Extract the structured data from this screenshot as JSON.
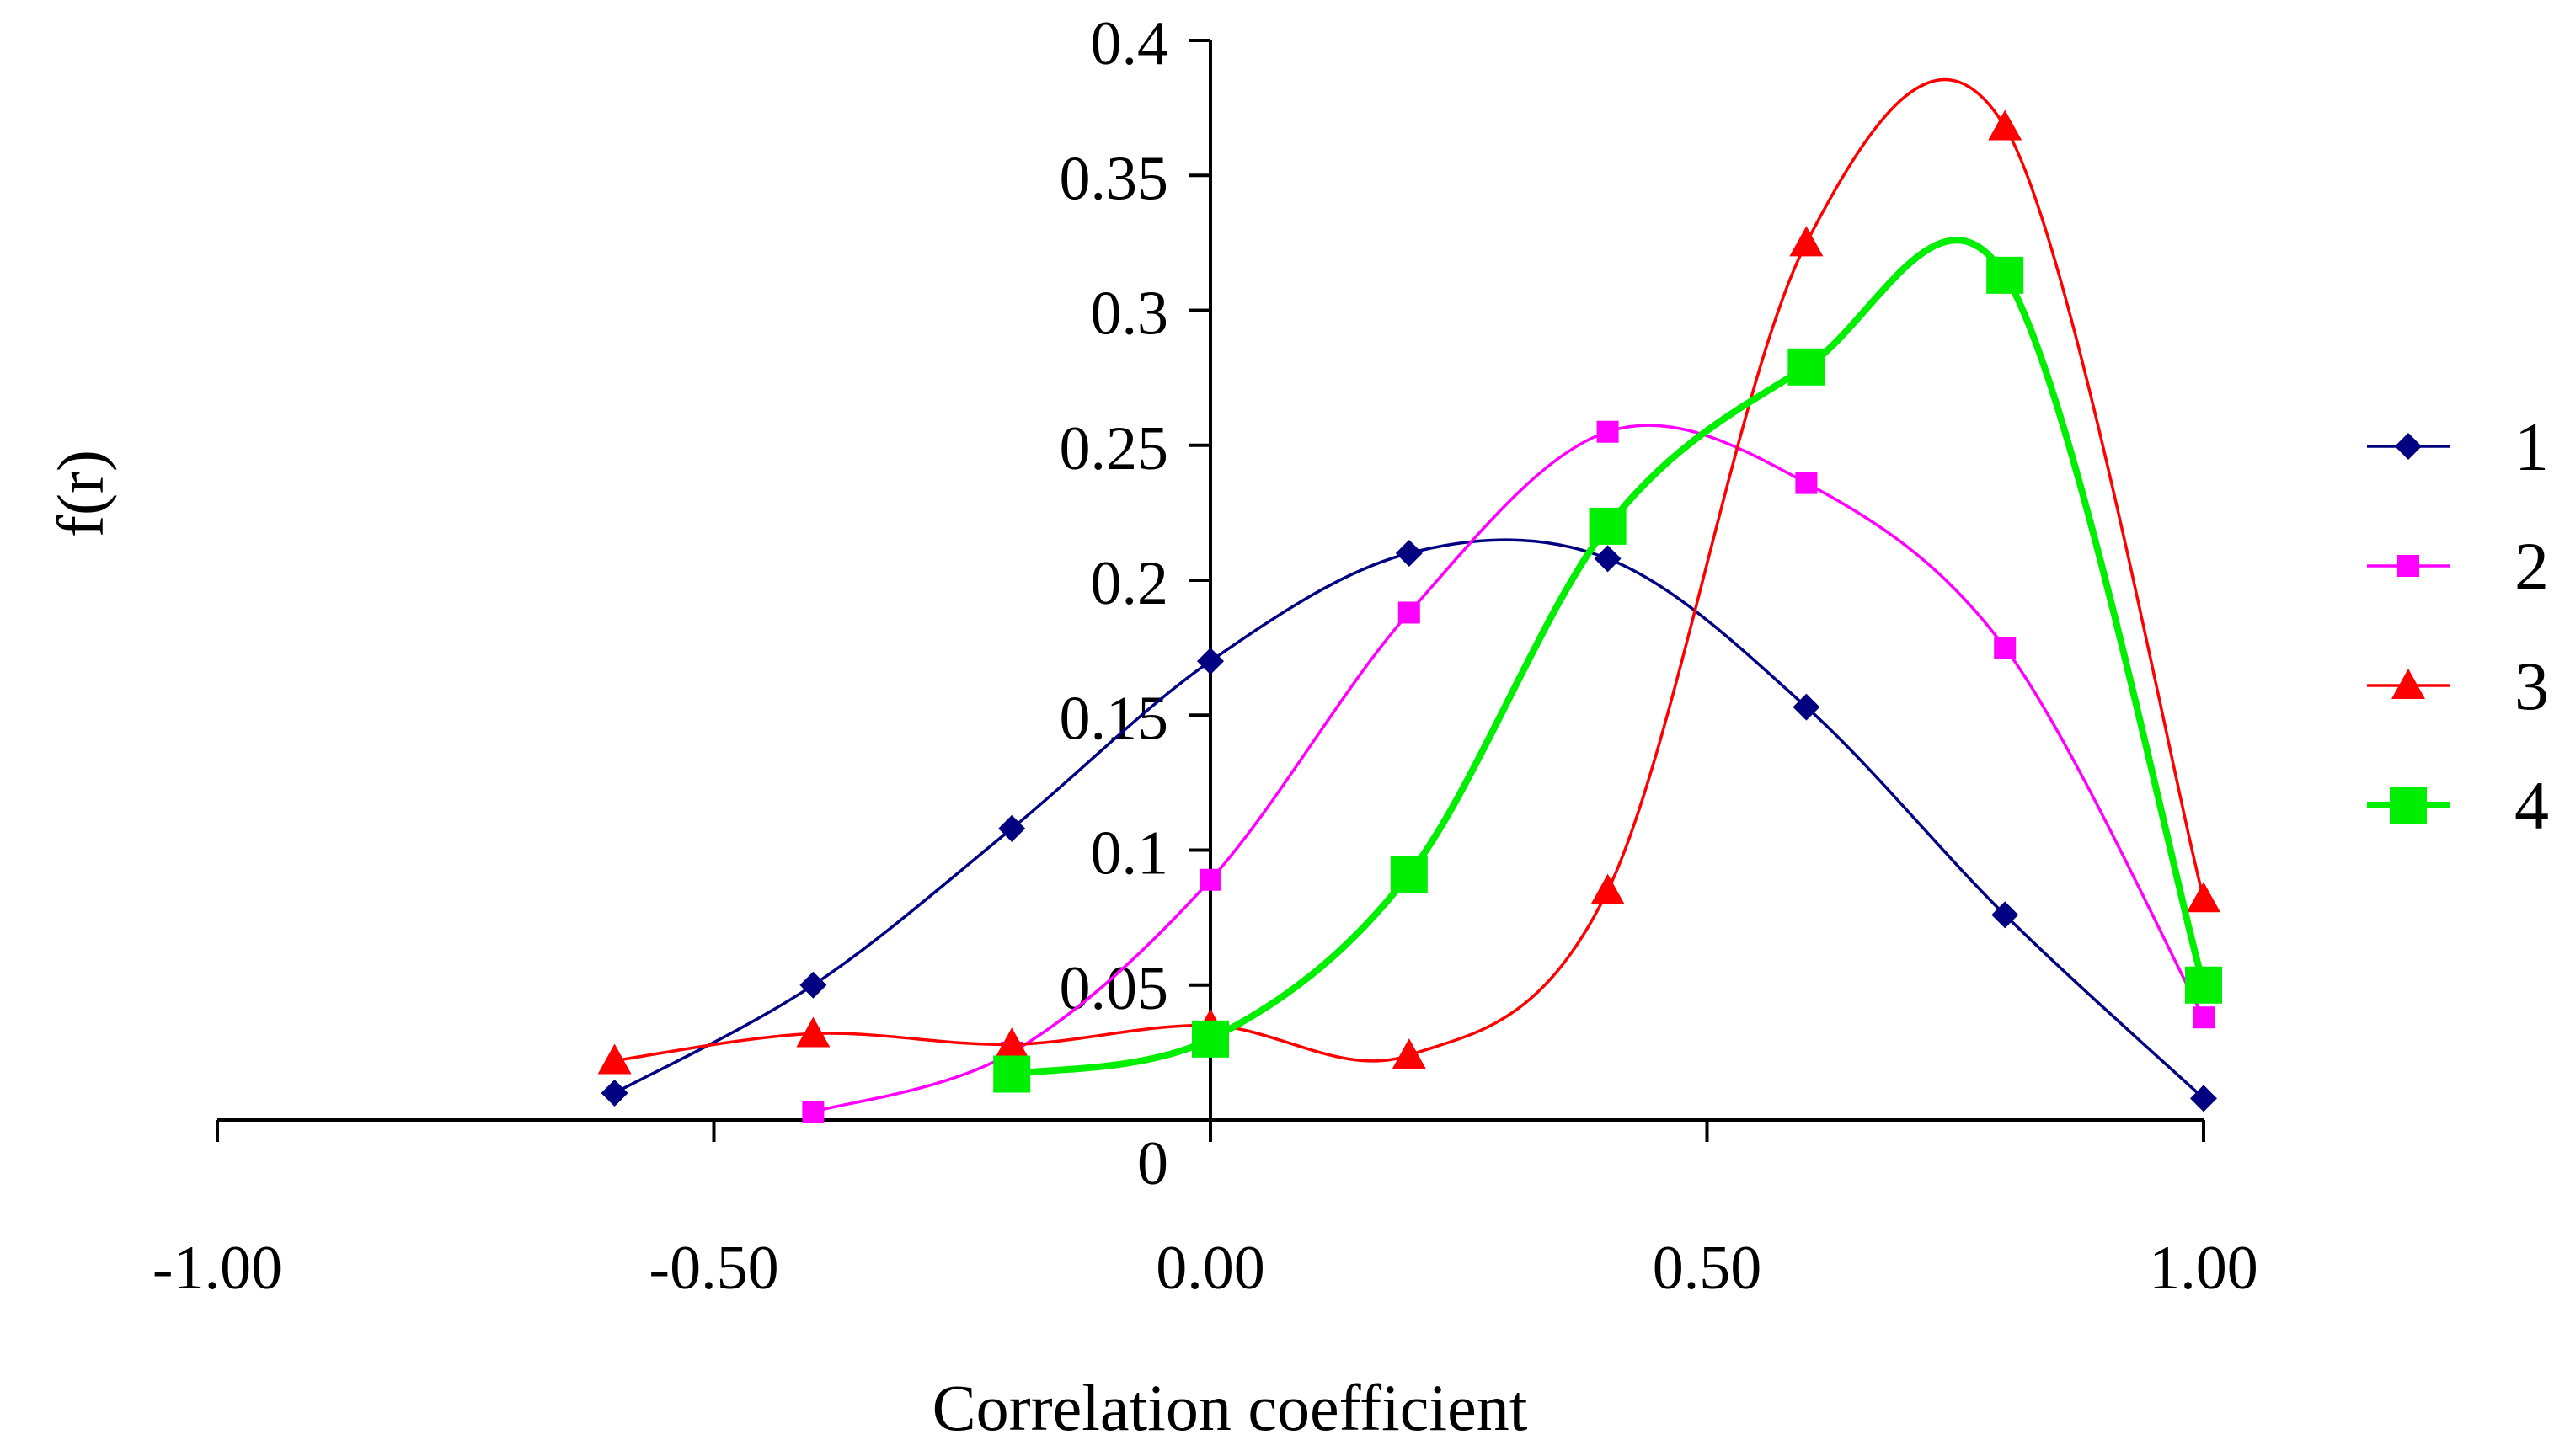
{
  "chart_data": {
    "type": "line",
    "title": "",
    "xlabel": "Correlation coefficient",
    "ylabel": "f(r)",
    "xlim": [
      -1.0,
      1.0
    ],
    "ylim": [
      0,
      0.4
    ],
    "x_ticks": [
      -1.0,
      -0.5,
      0.0,
      0.5,
      1.0
    ],
    "x_tick_labels": [
      "-1.00",
      "-0.50",
      "0.00",
      "0.50",
      "1.00"
    ],
    "y_ticks": [
      0,
      0.05,
      0.1,
      0.15,
      0.2,
      0.25,
      0.3,
      0.35,
      0.4
    ],
    "y_tick_labels": [
      "0",
      "0.05",
      "0.1",
      "0.15",
      "0.2",
      "0.25",
      "0.3",
      "0.35",
      "0.4"
    ],
    "grid": false,
    "legend_position": "right",
    "smooth": true,
    "series": [
      {
        "name": "1",
        "color": "#000080",
        "marker": "diamond",
        "x": [
          -0.6,
          -0.4,
          -0.2,
          0.0,
          0.2,
          0.4,
          0.6,
          0.8,
          1.0
        ],
        "values": [
          0.01,
          0.05,
          0.108,
          0.17,
          0.21,
          0.208,
          0.153,
          0.076,
          0.008
        ]
      },
      {
        "name": "2",
        "color": "#ff00ff",
        "marker": "square",
        "x": [
          -0.4,
          -0.2,
          0.0,
          0.2,
          0.4,
          0.6,
          0.8,
          1.0
        ],
        "values": [
          0.003,
          0.025,
          0.089,
          0.188,
          0.255,
          0.236,
          0.175,
          0.038
        ]
      },
      {
        "name": "3",
        "color": "#ff0000",
        "marker": "triangle",
        "x": [
          -0.6,
          -0.4,
          -0.2,
          0.0,
          0.2,
          0.4,
          0.6,
          0.8,
          1.0
        ],
        "values": [
          0.022,
          0.032,
          0.028,
          0.035,
          0.024,
          0.085,
          0.325,
          0.368,
          0.082
        ]
      },
      {
        "name": "4",
        "color": "#00ee00",
        "marker": "square-large",
        "x": [
          -0.2,
          0.0,
          0.2,
          0.4,
          0.6,
          0.8,
          1.0
        ],
        "values": [
          0.017,
          0.03,
          0.091,
          0.22,
          0.279,
          0.313,
          0.05
        ]
      }
    ]
  }
}
